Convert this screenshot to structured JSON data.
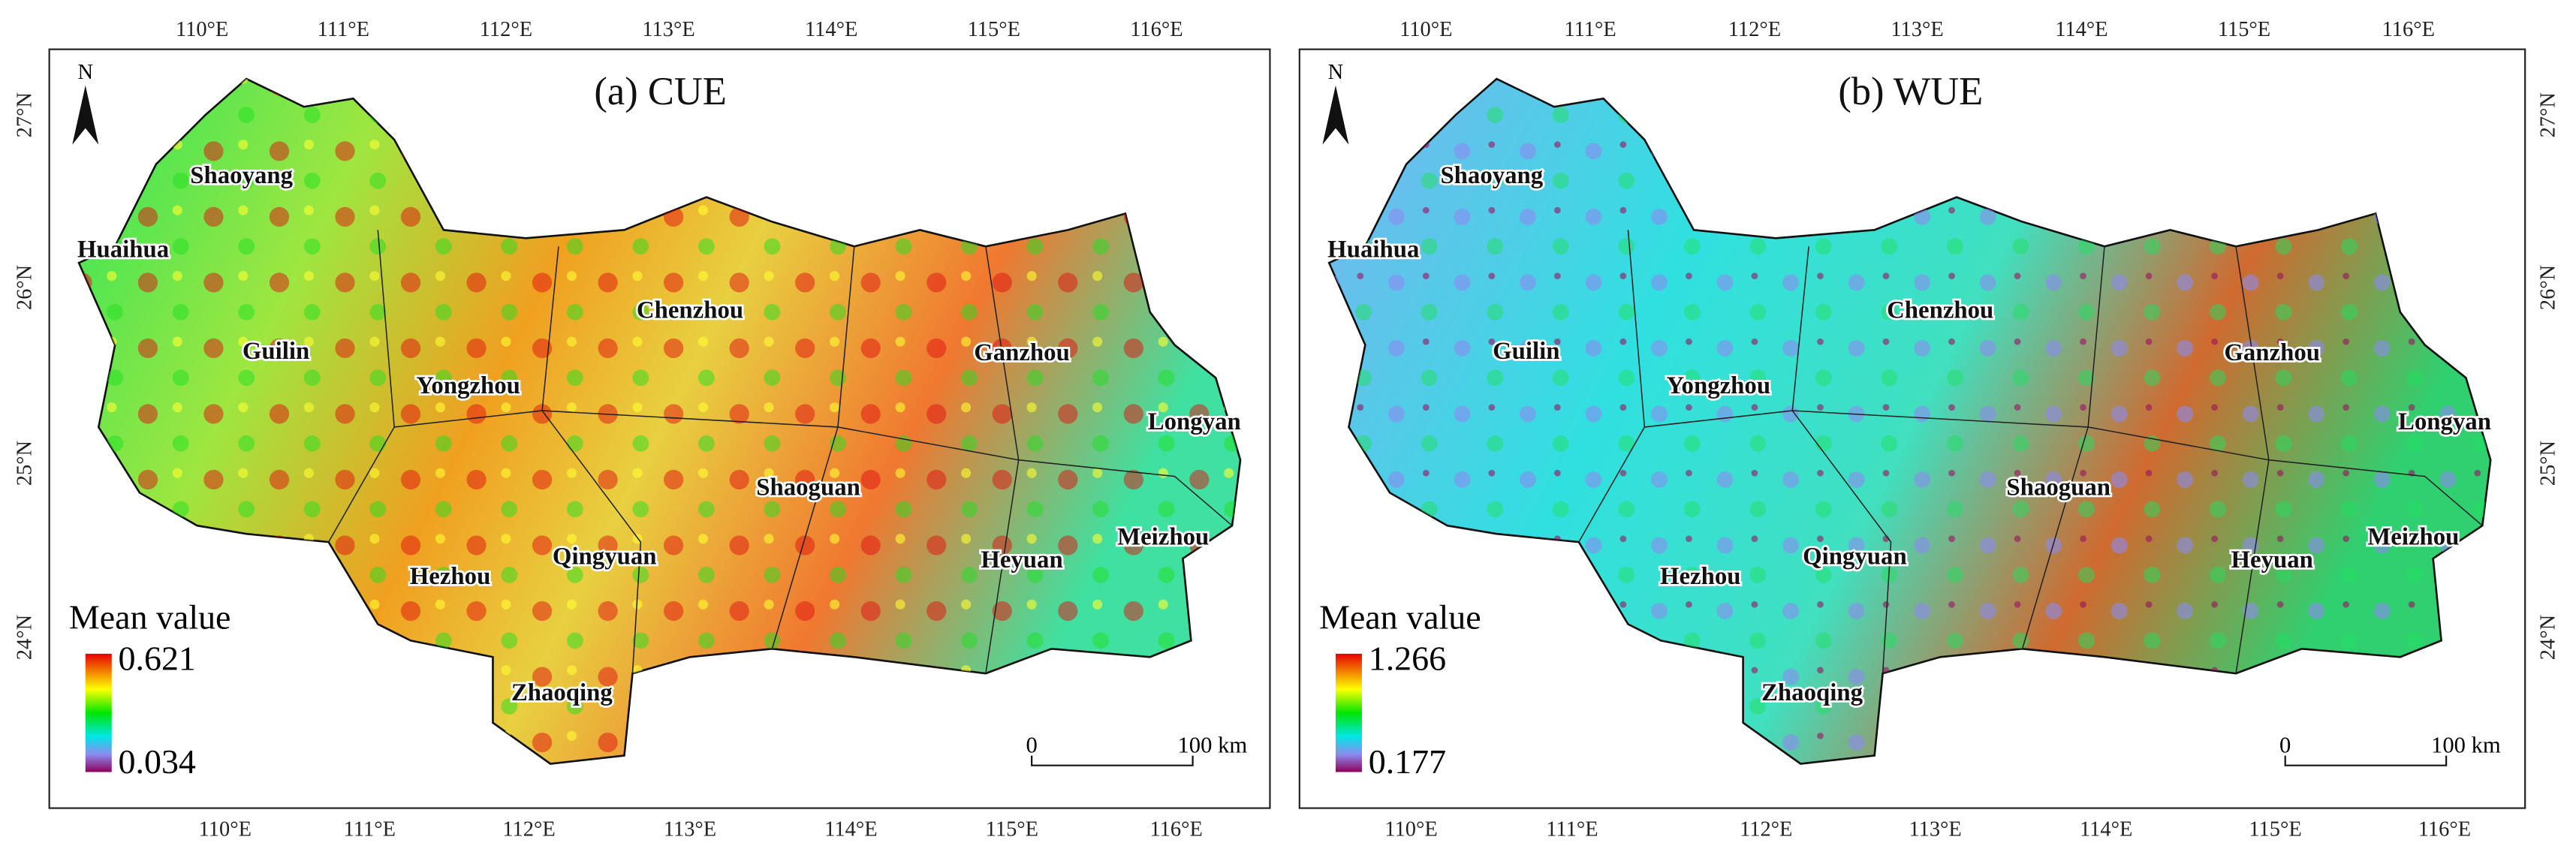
{
  "panels": [
    {
      "title": "(a) CUE",
      "north": "N",
      "legend": {
        "title": "Mean value",
        "max": "0.621",
        "min": "0.034"
      },
      "cities": [
        "Shaoyang",
        "Huaihua",
        "Guilin",
        "Yongzhou",
        "Chenzhou",
        "Ganzhou",
        "Longyan",
        "Shaoguan",
        "Meizhou",
        "Heyuan",
        "Qingyuan",
        "Hezhou",
        "Zhaoqing"
      ],
      "lon_ticks": [
        "110°E",
        "111°E",
        "112°E",
        "113°E",
        "114°E",
        "115°E",
        "116°E"
      ],
      "lat_ticks": [
        "27°N",
        "26°N",
        "25°N",
        "24°N"
      ],
      "scale_bar": {
        "start": "0",
        "end": "100 km"
      }
    },
    {
      "title": "(b) WUE",
      "north": "N",
      "legend": {
        "title": "Mean value",
        "max": "1.266",
        "min": "0.177"
      },
      "cities": [
        "Shaoyang",
        "Huaihua",
        "Guilin",
        "Yongzhou",
        "Chenzhou",
        "Ganzhou",
        "Longyan",
        "Shaoguan",
        "Meizhou",
        "Heyuan",
        "Qingyuan",
        "Hezhou",
        "Zhaoqing"
      ],
      "lon_ticks": [
        "110°E",
        "111°E",
        "112°E",
        "113°E",
        "114°E",
        "115°E",
        "116°E"
      ],
      "lat_ticks": [
        "27°N",
        "26°N",
        "25°N",
        "24°N"
      ],
      "scale_bar": {
        "start": "0",
        "end": "100 km"
      }
    }
  ]
}
